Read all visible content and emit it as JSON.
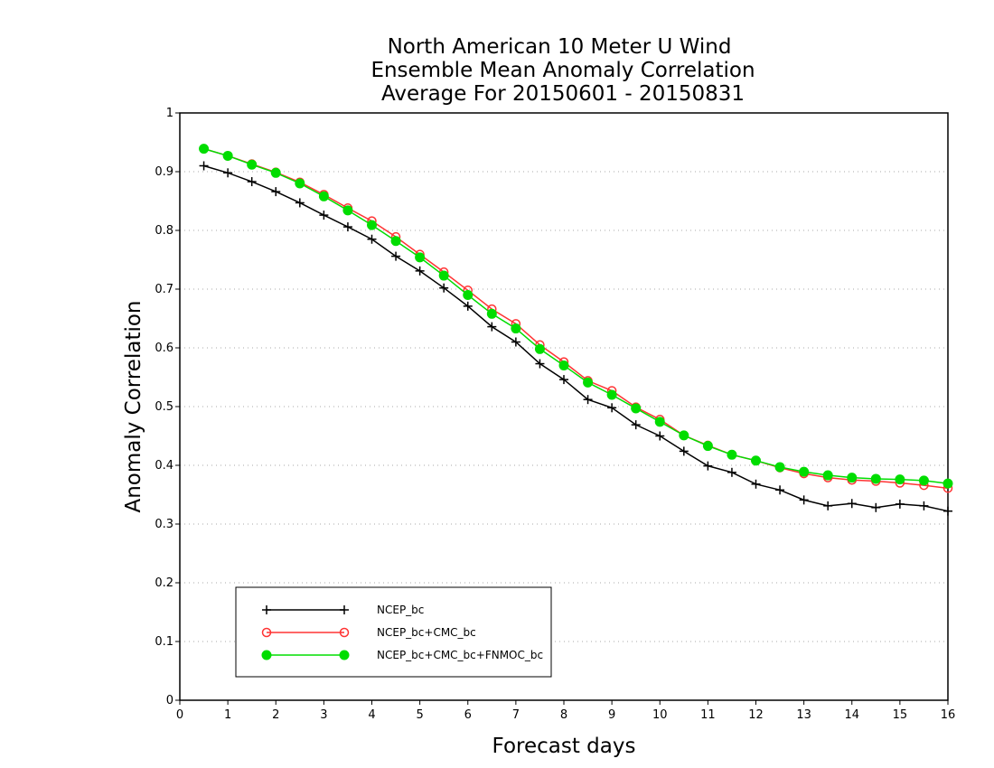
{
  "chart_data": {
    "type": "line",
    "title_lines": [
      "North American 10 Meter U Wind",
      "Ensemble Mean Anomaly Correlation",
      "Average For 20150601 - 20150831"
    ],
    "xlabel": "Forecast days",
    "ylabel": "Anomaly Correlation",
    "xlim": [
      0,
      16
    ],
    "ylim": [
      0,
      1
    ],
    "xticks": [
      "0",
      "1",
      "2",
      "3",
      "4",
      "5",
      "6",
      "7",
      "8",
      "9",
      "10",
      "11",
      "12",
      "13",
      "14",
      "15",
      "16"
    ],
    "yticks": [
      "0",
      "0.1",
      "0.2",
      "0.3",
      "0.4",
      "0.5",
      "0.6",
      "0.7",
      "0.8",
      "0.9",
      "1"
    ],
    "grid": "horizontal dotted",
    "legend_position": "bottom-left",
    "x": [
      0.5,
      1,
      1.5,
      2,
      2.5,
      3,
      3.5,
      4,
      4.5,
      5,
      5.5,
      6,
      6.5,
      7,
      7.5,
      8,
      8.5,
      9,
      9.5,
      10,
      10.5,
      11,
      11.5,
      12,
      12.5,
      13,
      13.5,
      14,
      14.5,
      15,
      15.5,
      16
    ],
    "series": [
      {
        "name": "NCEP_bc",
        "color": "#000000",
        "marker": "plus",
        "values": [
          0.91,
          0.898,
          0.883,
          0.866,
          0.847,
          0.826,
          0.806,
          0.785,
          0.756,
          0.731,
          0.702,
          0.671,
          0.636,
          0.61,
          0.573,
          0.546,
          0.512,
          0.498,
          0.469,
          0.45,
          0.424,
          0.399,
          0.388,
          0.368,
          0.358,
          0.341,
          0.331,
          0.335,
          0.328,
          0.334,
          0.331,
          0.322
        ]
      },
      {
        "name": "NCEP_bc+CMC_bc",
        "color": "#ff3333",
        "marker": "open-circle",
        "values": [
          0.939,
          0.927,
          0.913,
          0.899,
          0.882,
          0.861,
          0.838,
          0.816,
          0.789,
          0.759,
          0.729,
          0.698,
          0.666,
          0.641,
          0.605,
          0.576,
          0.544,
          0.527,
          0.499,
          0.478,
          0.451,
          0.434,
          0.418,
          0.408,
          0.396,
          0.386,
          0.379,
          0.375,
          0.373,
          0.37,
          0.366,
          0.361
        ]
      },
      {
        "name": "NCEP_bc+CMC_bc+FNMOC_bc",
        "color": "#00dd00",
        "marker": "filled-circle",
        "values": [
          0.939,
          0.927,
          0.912,
          0.898,
          0.88,
          0.858,
          0.834,
          0.809,
          0.782,
          0.754,
          0.723,
          0.69,
          0.658,
          0.633,
          0.598,
          0.57,
          0.541,
          0.52,
          0.497,
          0.474,
          0.451,
          0.433,
          0.418,
          0.408,
          0.397,
          0.389,
          0.383,
          0.379,
          0.377,
          0.376,
          0.374,
          0.369
        ]
      }
    ]
  }
}
